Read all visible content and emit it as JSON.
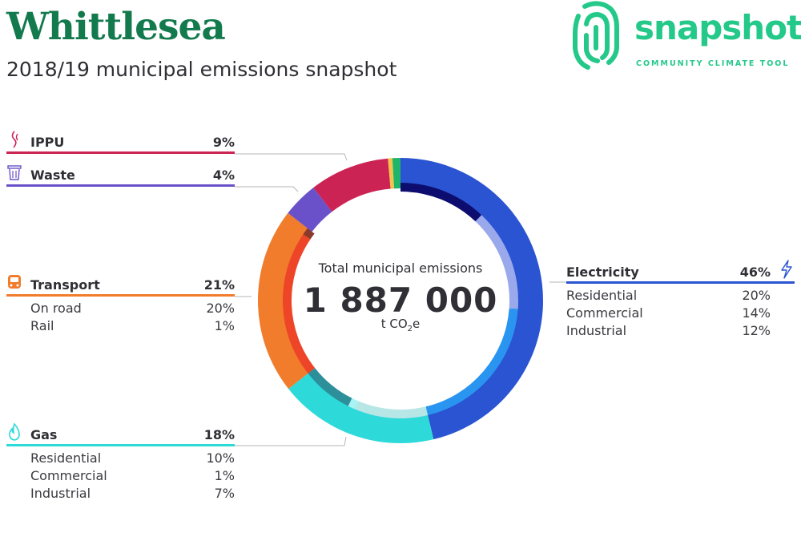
{
  "header": {
    "title": "Whittlesea",
    "subtitle": "2018/19 municipal emissions snapshot"
  },
  "logo": {
    "word": "snapshot",
    "tagline": "COMMUNITY CLIMATE TOOL"
  },
  "center": {
    "label": "Total municipal emissions",
    "value": "1 887 000",
    "unit_prefix": "t CO",
    "unit_sub": "2",
    "unit_suffix": "e"
  },
  "colors": {
    "ippu": "#cc2355",
    "waste": "#6a51c9",
    "transport": "#f07c2c",
    "gas": "#2dd9d9",
    "electricity": "#2a54d2",
    "logo": "#24c98a",
    "title": "#137a4e"
  },
  "categories": {
    "ippu": {
      "name": "IPPU",
      "pct": "9%",
      "icon": "smoke-icon"
    },
    "waste": {
      "name": "Waste",
      "pct": "4%",
      "icon": "trash-bin-icon"
    },
    "transport": {
      "name": "Transport",
      "pct": "21%",
      "icon": "train-icon",
      "rows": [
        {
          "label": "On road",
          "value": "20%"
        },
        {
          "label": "Rail",
          "value": "1%"
        }
      ]
    },
    "gas": {
      "name": "Gas",
      "pct": "18%",
      "icon": "flame-icon",
      "rows": [
        {
          "label": "Residential",
          "value": "10%"
        },
        {
          "label": "Commercial",
          "value": "1%"
        },
        {
          "label": "Industrial",
          "value": "7%"
        }
      ]
    },
    "electricity": {
      "name": "Electricity",
      "pct": "46%",
      "icon": "lightning-bolt-icon",
      "rows": [
        {
          "label": "Residential",
          "value": "20%"
        },
        {
          "label": "Commercial",
          "value": "14%"
        },
        {
          "label": "Industrial",
          "value": "12%"
        }
      ]
    }
  },
  "chart_data": {
    "type": "pie",
    "outer_series": [
      {
        "name": "Electricity",
        "value": 46,
        "color": "#2a54d2"
      },
      {
        "name": "Gas",
        "value": 18,
        "color": "#2dd9d9"
      },
      {
        "name": "Transport",
        "value": 21,
        "color": "#f07c2c"
      },
      {
        "name": "Waste",
        "value": 4,
        "color": "#6a51c9"
      },
      {
        "name": "IPPU",
        "value": 9,
        "color": "#cc2355"
      },
      {
        "name": "",
        "value": 0.5,
        "color": "#f5c24a"
      },
      {
        "name": "",
        "value": 0.9,
        "color": "#1fb56a"
      }
    ],
    "inner_series": [
      {
        "name": "Electricity Industrial",
        "value": 12,
        "color": "#0c0d6e"
      },
      {
        "name": "Electricity Commercial",
        "value": 14,
        "color": "#9aa9ec"
      },
      {
        "name": "Electricity Residential",
        "value": 20,
        "color": "#2a95f0"
      },
      {
        "name": "Gas Residential",
        "value": 10,
        "color": "#b7e6e6"
      },
      {
        "name": "Gas Commercial",
        "value": 1,
        "color": "#a8f3f3"
      },
      {
        "name": "Gas Industrial",
        "value": 7,
        "color": "#2c8f9a"
      },
      {
        "name": "Transport On road",
        "value": 20,
        "color": "#ee4428"
      },
      {
        "name": "Transport Rail",
        "value": 1,
        "color": "#8a3a2a"
      }
    ]
  }
}
